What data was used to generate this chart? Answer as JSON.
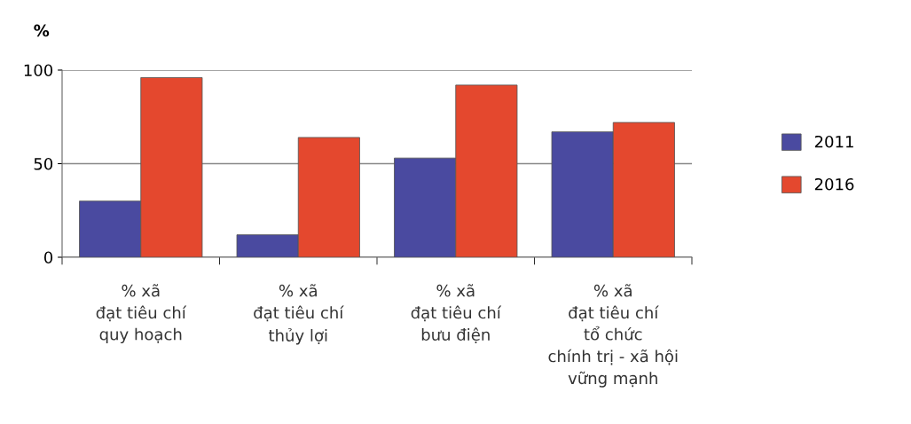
{
  "chart_data": {
    "type": "bar",
    "ylabel": "%",
    "categories": [
      "% xã\nđạt tiêu chí\nquy hoạch",
      "% xã\nđạt tiêu chí\nthủy lợi",
      "% xã\nđạt tiêu chí\nbưu điện",
      "% xã\nđạt tiêu chí\ntổ chức\nchính trị - xã hội\nvững mạnh"
    ],
    "series": [
      {
        "name": "2011",
        "color": "#4a4aa0",
        "values": [
          30,
          12,
          53,
          67
        ]
      },
      {
        "name": "2016",
        "color": "#e4482e",
        "values": [
          96,
          64,
          92,
          72
        ]
      }
    ],
    "ylim": [
      0,
      100
    ],
    "yticks": [
      0,
      50,
      100
    ],
    "grid": "y",
    "legend": "right"
  }
}
